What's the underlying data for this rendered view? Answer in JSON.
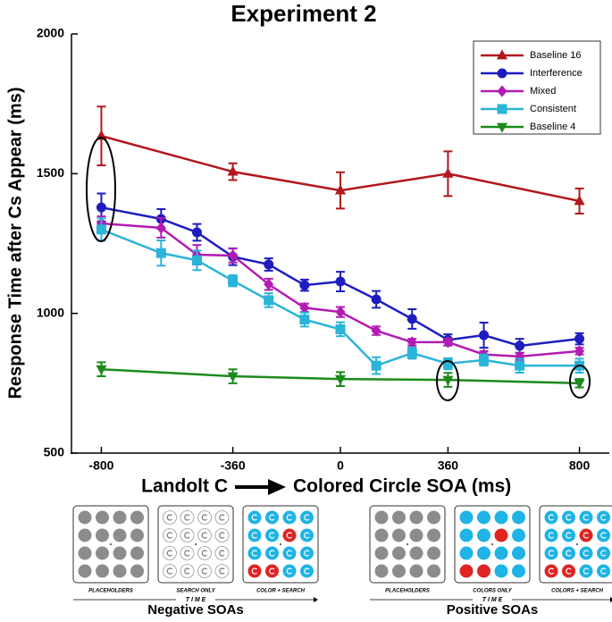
{
  "chart_data": {
    "type": "line",
    "title": "Experiment 2",
    "ylabel": "Response Time after Cs Appear (ms)",
    "xlabel_from": "Landolt C",
    "xlabel_to": "Colored Circle SOA (ms)",
    "xlim": [
      -900,
      900
    ],
    "ylim": [
      500,
      2000
    ],
    "xticks": [
      -800,
      -360,
      0,
      360,
      800
    ],
    "yticks": [
      500,
      1000,
      1500,
      2000
    ],
    "legend": "upper right",
    "series": [
      {
        "name": "Baseline 16",
        "color": "#b2171c",
        "marker": "triangle-up",
        "x": [
          -800,
          -360,
          0,
          360,
          800
        ],
        "values": [
          1635,
          1507,
          1440,
          1500,
          1402
        ],
        "errors": [
          105,
          30,
          65,
          80,
          45
        ]
      },
      {
        "name": "Interference",
        "color": "#1d1dbf",
        "marker": "circle",
        "x": [
          -800,
          -600,
          -480,
          -360,
          -240,
          -120,
          0,
          120,
          240,
          360,
          480,
          600,
          800
        ],
        "values": [
          1379,
          1338,
          1290,
          1203,
          1175,
          1101,
          1114,
          1050,
          980,
          905,
          922,
          884,
          909
        ],
        "errors": [
          50,
          35,
          30,
          30,
          22,
          20,
          35,
          30,
          35,
          20,
          45,
          25,
          20
        ]
      },
      {
        "name": "Mixed",
        "color": "#b31bb3",
        "marker": "diamond",
        "x": [
          -800,
          -600,
          -480,
          -360,
          -240,
          -120,
          0,
          120,
          240,
          360,
          480,
          600,
          800
        ],
        "values": [
          1322,
          1306,
          1210,
          1207,
          1104,
          1020,
          1005,
          938,
          897,
          897,
          853,
          846,
          865
        ],
        "errors": [
          25,
          35,
          35,
          25,
          20,
          15,
          18,
          15,
          12,
          12,
          12,
          12,
          12
        ]
      },
      {
        "name": "Consistent",
        "color": "#2ab4d8",
        "marker": "square",
        "x": [
          -800,
          -600,
          -480,
          -360,
          -240,
          -120,
          0,
          120,
          240,
          360,
          480,
          600,
          800
        ],
        "values": [
          1300,
          1216,
          1190,
          1117,
          1047,
          978,
          943,
          813,
          858,
          820,
          833,
          813,
          813
        ],
        "errors": [
          40,
          45,
          35,
          20,
          25,
          25,
          25,
          30,
          20,
          20,
          20,
          25,
          25
        ]
      },
      {
        "name": "Baseline 4",
        "color": "#1c8a1c",
        "marker": "triangle-down",
        "x": [
          -800,
          -360,
          0,
          360,
          800
        ],
        "values": [
          800,
          775,
          765,
          762,
          750
        ],
        "errors": [
          25,
          25,
          25,
          25,
          15
        ]
      }
    ]
  },
  "panels": [
    {
      "frames": [
        "PLACEHOLDERS",
        "SEARCH ONLY",
        "COLOR + SEARCH"
      ],
      "time": "T I M E",
      "label": "Negative SOAs"
    },
    {
      "frames": [
        "PLACEHOLDERS",
        "COLORS ONLY",
        "COLORS + SEARCH"
      ],
      "time": "T I M E",
      "label": "Positive SOAs"
    }
  ]
}
